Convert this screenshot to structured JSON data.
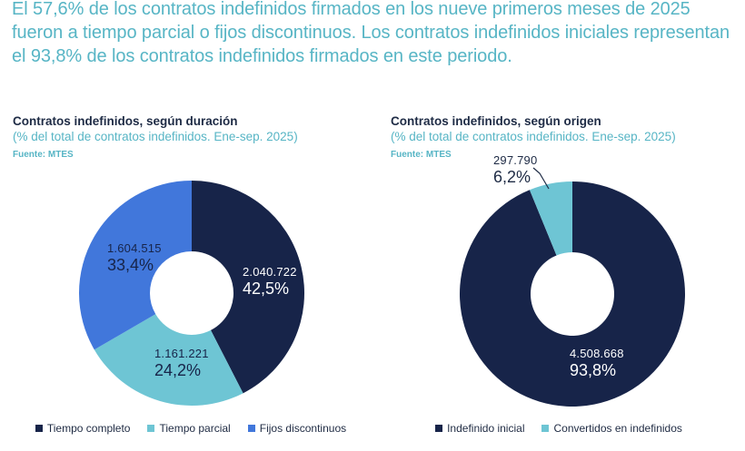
{
  "headline": "El 57,6% de los contratos indefinidos firmados en los nueve primeros meses de 2025 fueron a tiempo parcial o fijos discontinuos. Los contratos indefinidos iniciales representan el 93,8% de los contratos indefinidos firmados en este periodo.",
  "colors": {
    "accent_text": "#57b5c5",
    "navy": "#172449",
    "teal": "#6ec5d4",
    "blue": "#4177db",
    "dark_text": "#1e2b45",
    "white_label": "#ffffff"
  },
  "chart_data": [
    {
      "type": "pie",
      "donut": true,
      "donut_hole_ratio": 0.37,
      "start_angle_deg": 0,
      "direction": "clockwise",
      "legend_position": "bottom",
      "title": "Contratos indefinidos, según duración",
      "subtitle": "(% del total de contratos indefinidos. Ene-sep. 2025)",
      "source": "Fuente: MTES",
      "slices": [
        {
          "label": "Tiempo completo",
          "value": 2040722,
          "value_label": "2.040.722",
          "pct": 42.5,
          "pct_label": "42,5%",
          "color": "#172449",
          "label_color": "#ffffff",
          "label_placement": "inside"
        },
        {
          "label": "Tiempo parcial",
          "value": 1161221,
          "value_label": "1.161.221",
          "pct": 24.2,
          "pct_label": "24,2%",
          "color": "#6ec5d4",
          "label_color": "#172449",
          "label_placement": "inside"
        },
        {
          "label": "Fijos discontinuos",
          "value": 1604515,
          "value_label": "1.604.515",
          "pct": 33.4,
          "pct_label": "33,4%",
          "color": "#4177db",
          "label_color": "#172449",
          "label_placement": "inside"
        }
      ]
    },
    {
      "type": "pie",
      "donut": true,
      "donut_hole_ratio": 0.37,
      "start_angle_deg": 0,
      "direction": "clockwise",
      "legend_position": "bottom",
      "title": "Contratos indefinidos, según origen",
      "subtitle": "(% del total de contratos indefinidos. Ene-sep. 2025)",
      "source": "Fuente: MTES",
      "slices": [
        {
          "label": "Indefinido inicial",
          "value": 4508668,
          "value_label": "4.508.668",
          "pct": 93.8,
          "pct_label": "93,8%",
          "color": "#172449",
          "label_color": "#ffffff",
          "label_placement": "inside"
        },
        {
          "label": "Convertidos en indefinidos",
          "value": 297790,
          "value_label": "297.790",
          "pct": 6.2,
          "pct_label": "6,2%",
          "color": "#6ec5d4",
          "label_color": "#1e2b45",
          "label_placement": "outside"
        }
      ]
    }
  ]
}
